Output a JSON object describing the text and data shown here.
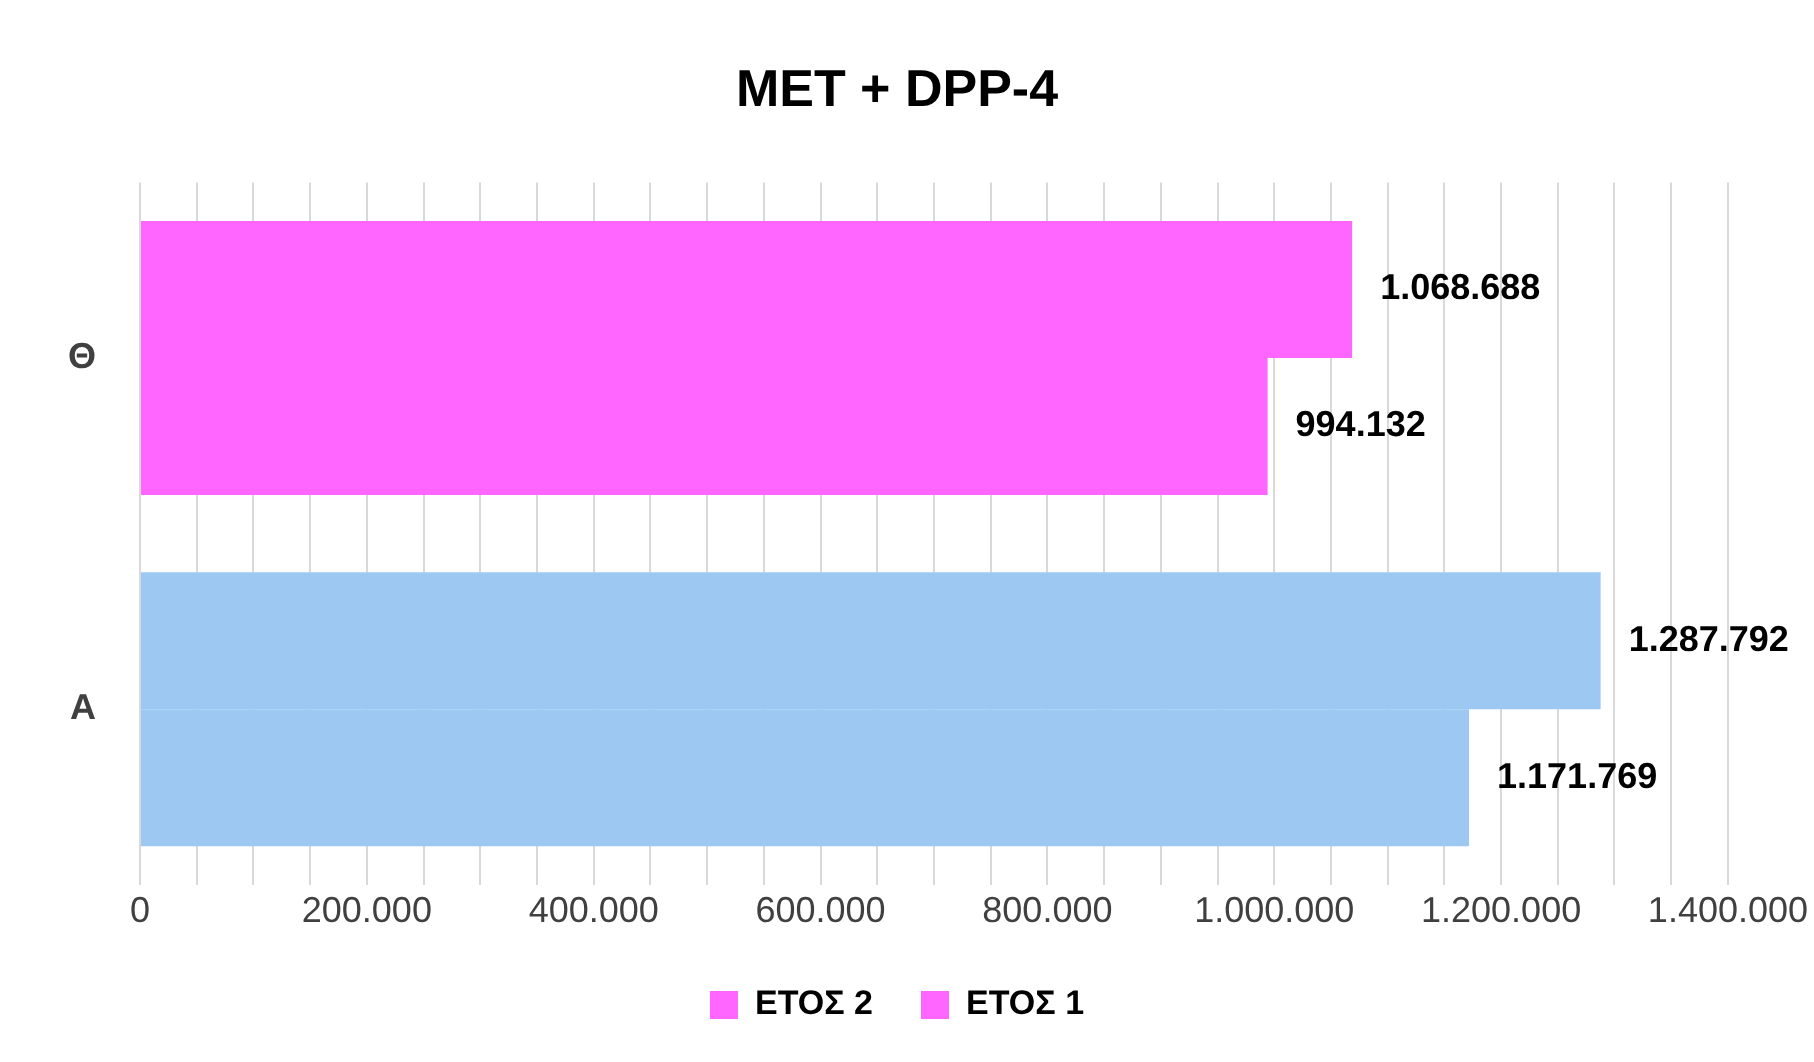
{
  "chart_data": {
    "type": "bar",
    "orientation": "horizontal",
    "title": "MET + DPP-4",
    "categories": [
      "Θ",
      "A"
    ],
    "series": [
      {
        "name": "ΕΤΟΣ 2",
        "colors": [
          "#ff66ff",
          "#9dc8f2"
        ],
        "values": [
          1068688,
          1287792
        ],
        "value_labels": [
          "1.068.688",
          "1.287.792"
        ]
      },
      {
        "name": "ΕΤΟΣ 1",
        "colors": [
          "#ff66ff",
          "#9dc8f2"
        ],
        "values": [
          994132,
          1171769
        ],
        "value_labels": [
          "994.132",
          "1.171.769"
        ]
      }
    ],
    "xlim": [
      0,
      1400000
    ],
    "xticks": [
      0,
      {
        "value": 50000,
        "label": null
      },
      {
        "value": 100000,
        "label": null
      },
      {
        "value": 150000,
        "label": null
      },
      {
        "value": 200000,
        "label": "200.000"
      },
      {
        "value": 250000,
        "label": null
      },
      {
        "value": 300000,
        "label": null
      },
      {
        "value": 350000,
        "label": null
      },
      {
        "value": 400000,
        "label": "400.000"
      },
      {
        "value": 450000,
        "label": null
      },
      {
        "value": 500000,
        "label": null
      },
      {
        "value": 550000,
        "label": null
      },
      {
        "value": 600000,
        "label": "600.000"
      },
      {
        "value": 650000,
        "label": null
      },
      {
        "value": 700000,
        "label": null
      },
      {
        "value": 750000,
        "label": null
      },
      {
        "value": 800000,
        "label": "800.000"
      },
      {
        "value": 850000,
        "label": null
      },
      {
        "value": 900000,
        "label": null
      },
      {
        "value": 950000,
        "label": null
      },
      {
        "value": 1000000,
        "label": "1.000.000"
      },
      {
        "value": 1050000,
        "label": null
      },
      {
        "value": 1100000,
        "label": null
      },
      {
        "value": 1150000,
        "label": null
      },
      {
        "value": 1200000,
        "label": "1.200.000"
      },
      {
        "value": 1250000,
        "label": null
      },
      {
        "value": 1300000,
        "label": null
      },
      {
        "value": 1350000,
        "label": null
      },
      {
        "value": 1400000,
        "label": "1.400.000"
      }
    ],
    "grid": "x",
    "legend": "bottom"
  }
}
